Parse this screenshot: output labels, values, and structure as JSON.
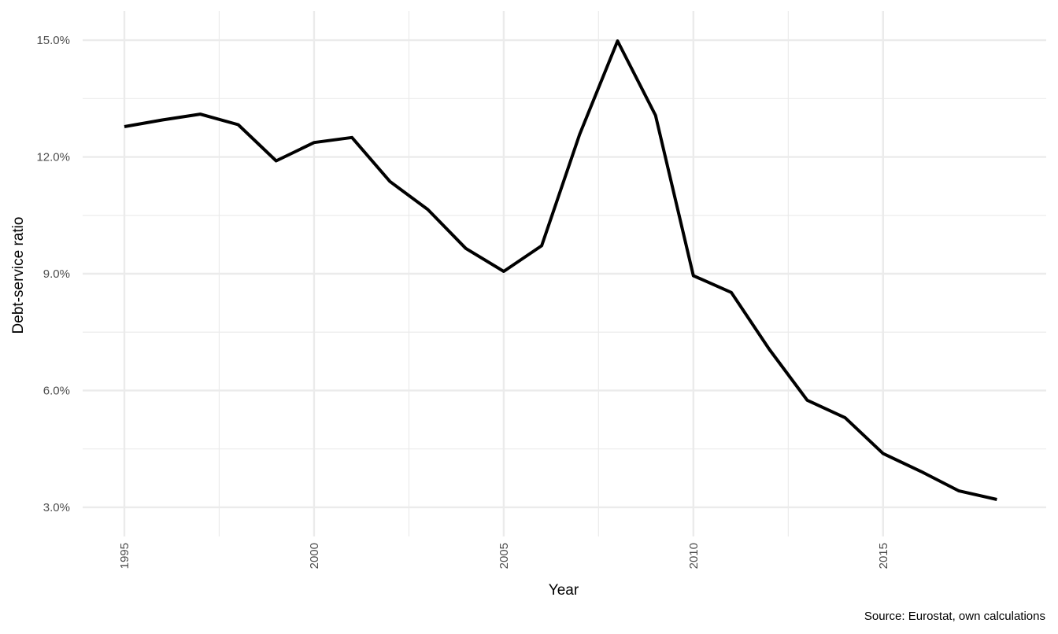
{
  "chart_data": {
    "type": "line",
    "title": "",
    "xlabel": "Year",
    "ylabel": "Debt-service ratio",
    "caption": "Source: Eurostat, own calculations",
    "x": [
      1995,
      1996,
      1997,
      1998,
      1999,
      2000,
      2001,
      2002,
      2003,
      2004,
      2005,
      2006,
      2007,
      2008,
      2009,
      2010,
      2011,
      2012,
      2013,
      2014,
      2015,
      2016,
      2017,
      2018
    ],
    "series": [
      {
        "values": [
          12.78,
          12.95,
          13.1,
          12.83,
          11.9,
          12.37,
          12.5,
          11.37,
          10.65,
          9.65,
          9.06,
          9.72,
          12.58,
          14.98,
          13.07,
          8.95,
          8.52,
          7.06,
          5.75,
          5.3,
          4.38,
          3.92,
          3.42,
          3.2
        ]
      }
    ],
    "xticks": [
      "1995",
      "2000",
      "2005",
      "2010",
      "2015"
    ],
    "xtick_values": [
      1995,
      2000,
      2005,
      2010,
      2015
    ],
    "yticks": [
      "3.0%",
      "6.0%",
      "9.0%",
      "12.0%",
      "15.0%"
    ],
    "ytick_values": [
      3,
      6,
      9,
      12,
      15
    ],
    "xlim": [
      1993.9,
      2019.3
    ],
    "ylim": [
      2.25,
      15.75
    ],
    "grid": true,
    "line_color": "#000000",
    "grid_color": "#ebebeb"
  }
}
